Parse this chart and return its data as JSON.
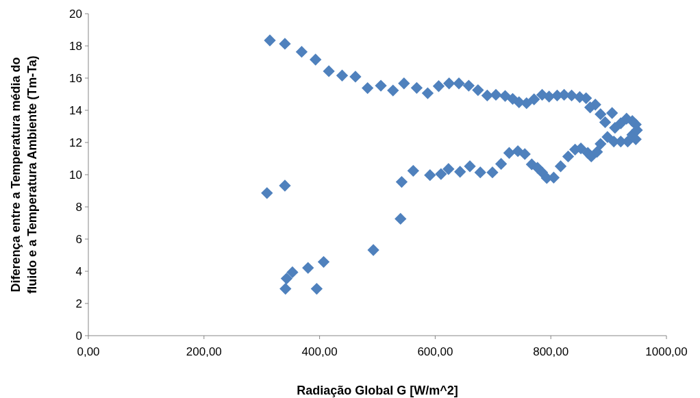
{
  "chart_data": {
    "type": "scatter",
    "xlabel": "Radiação Global G [W/m^2]",
    "ylabel": "Diferença entre a Temperatura média do fluido e a Temperatura Ambiente (Tm-Ta)",
    "series": [
      {
        "color": "#4f81bd",
        "x": [
          309,
          340,
          341,
          343,
          353,
          380,
          395,
          407,
          493,
          540,
          542,
          562,
          591,
          610,
          623,
          643,
          660,
          678,
          699,
          714,
          728,
          743,
          755,
          767,
          777,
          785,
          793,
          805,
          817,
          830,
          842,
          852,
          864,
          870,
          880,
          886,
          898,
          909,
          921,
          933,
          941,
          947,
          949,
          947,
          941,
          931,
          921,
          911,
          906,
          894,
          886,
          877,
          868,
          861,
          850,
          836,
          823,
          811,
          797,
          785,
          771,
          758,
          745,
          734,
          721,
          705,
          690,
          674,
          658,
          641,
          624,
          606,
          587,
          568,
          546,
          527,
          506,
          483,
          462,
          439,
          416,
          393,
          369,
          340,
          314
        ],
        "values": [
          8.86,
          9.32,
          2.91,
          3.55,
          3.94,
          4.21,
          2.91,
          4.58,
          5.32,
          7.26,
          9.55,
          10.24,
          9.97,
          10.04,
          10.35,
          10.18,
          10.52,
          10.14,
          10.14,
          10.67,
          11.35,
          11.46,
          11.28,
          10.64,
          10.43,
          10.14,
          9.79,
          9.82,
          10.52,
          11.13,
          11.56,
          11.63,
          11.35,
          11.13,
          11.42,
          11.91,
          12.34,
          12.06,
          12.06,
          12.06,
          12.48,
          12.2,
          12.77,
          13.12,
          13.33,
          13.48,
          13.19,
          12.91,
          13.83,
          13.26,
          13.76,
          14.35,
          14.18,
          14.75,
          14.82,
          14.92,
          14.96,
          14.92,
          14.85,
          14.96,
          14.68,
          14.44,
          14.5,
          14.71,
          14.89,
          14.96,
          14.92,
          15.25,
          15.53,
          15.67,
          15.67,
          15.5,
          15.06,
          15.39,
          15.67,
          15.23,
          15.53,
          15.38,
          16.09,
          16.16,
          16.43,
          17.15,
          17.63,
          18.13,
          18.34
        ]
      }
    ],
    "xlim": [
      0,
      1000
    ],
    "xticks": [
      {
        "value": 0,
        "label": "0,00"
      },
      {
        "value": 200,
        "label": "200,00"
      },
      {
        "value": 400,
        "label": "400,00"
      },
      {
        "value": 600,
        "label": "600,00"
      },
      {
        "value": 800,
        "label": "800,00"
      },
      {
        "value": 1000,
        "label": "1000,00"
      }
    ],
    "ylim": [
      0,
      20
    ],
    "yticks": [
      0,
      2,
      4,
      6,
      8,
      10,
      12,
      14,
      16,
      18,
      20
    ],
    "marker": "diamond",
    "grid": false
  }
}
